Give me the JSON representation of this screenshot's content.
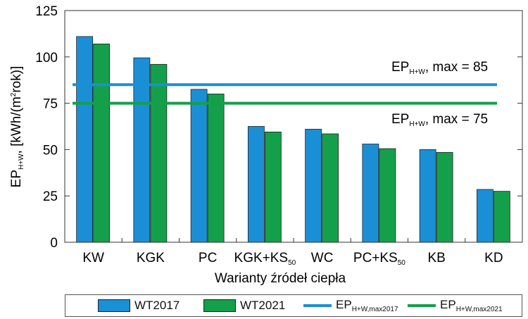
{
  "chart_data": {
    "type": "bar",
    "categories": [
      "KW",
      "KGK",
      "PC",
      "KGK+KS50",
      "WC",
      "PC+KS50",
      "KB",
      "KD"
    ],
    "category_labels": [
      {
        "main": "KW",
        "sub": ""
      },
      {
        "main": "KGK",
        "sub": ""
      },
      {
        "main": "PC",
        "sub": ""
      },
      {
        "main": "KGK+KS",
        "sub": "50"
      },
      {
        "main": "WC",
        "sub": ""
      },
      {
        "main": "PC+KS",
        "sub": "50"
      },
      {
        "main": "KB",
        "sub": ""
      },
      {
        "main": "KD",
        "sub": ""
      }
    ],
    "series": [
      {
        "name": "WT2017",
        "color": "#1b8fd6",
        "values": [
          111,
          99.5,
          82.5,
          62.5,
          61,
          53,
          50,
          28.5
        ]
      },
      {
        "name": "WT2021",
        "color": "#14a04a",
        "values": [
          107,
          96,
          80,
          59.5,
          58.5,
          50.5,
          48.5,
          27.5
        ]
      }
    ],
    "reference_lines": [
      {
        "value": 85,
        "color": "#1b8fd6",
        "label_main": "EP",
        "label_sub": "H+W",
        "label_rest": ", max = 85",
        "legend_main": "EP",
        "legend_sub": "H+W,max2017"
      },
      {
        "value": 75,
        "color": "#14a04a",
        "label_main": "EP",
        "label_sub": "H+W",
        "label_rest": ", max = 75",
        "legend_main": "EP",
        "legend_sub": "H+W,max2021"
      }
    ],
    "ylim": [
      0,
      125
    ],
    "yticks": [
      0,
      25,
      50,
      75,
      100,
      125
    ],
    "xlabel": "Warianty źródeł ciepła",
    "ylabel_parts": {
      "main": "EP",
      "sub": "H+W",
      "rest1": ", [kWh/(m",
      "sup": "2",
      "rest2": "rok)]"
    },
    "grid": false,
    "legend_position": "bottom"
  }
}
